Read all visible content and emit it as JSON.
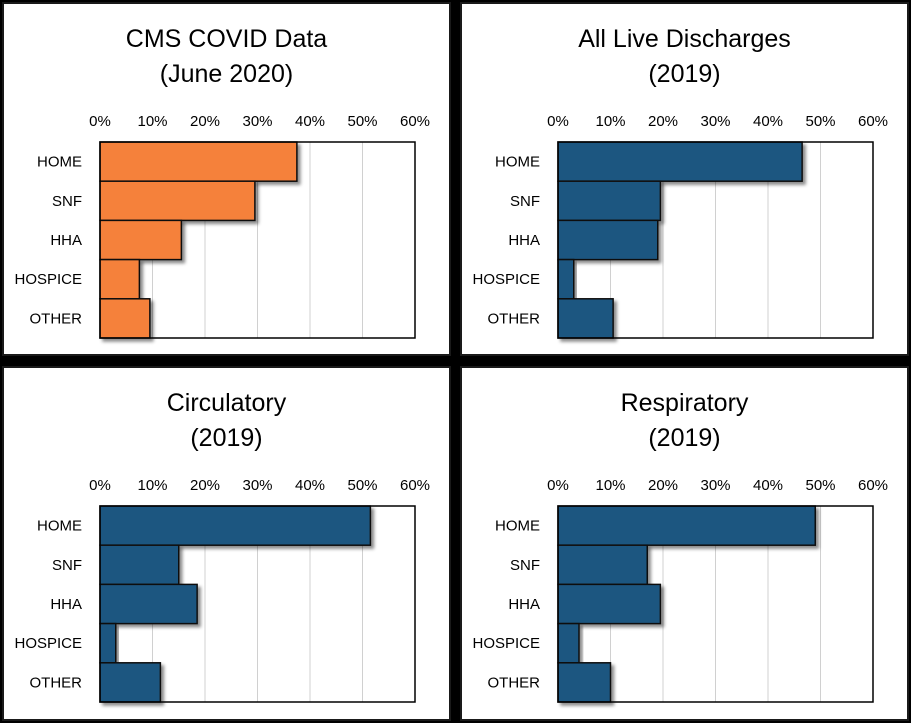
{
  "chart_data": [
    {
      "type": "bar",
      "orientation": "horizontal",
      "title": "CMS COVID Data",
      "subtitle": "(June 2020)",
      "categories": [
        "HOME",
        "SNF",
        "HHA",
        "HOSPICE",
        "OTHER"
      ],
      "values": [
        37.5,
        29.5,
        15.5,
        7.5,
        9.5
      ],
      "xlim": [
        0,
        60
      ],
      "xticks": [
        0,
        10,
        20,
        30,
        40,
        50,
        60
      ],
      "tick_labels": [
        "0%",
        "10%",
        "20%",
        "30%",
        "40%",
        "50%",
        "60%"
      ],
      "bar_color": "#F5813A",
      "grid": true
    },
    {
      "type": "bar",
      "orientation": "horizontal",
      "title": "All Live Discharges",
      "subtitle": "(2019)",
      "categories": [
        "HOME",
        "SNF",
        "HHA",
        "HOSPICE",
        "OTHER"
      ],
      "values": [
        46.5,
        19.5,
        19.0,
        3.0,
        10.5
      ],
      "xlim": [
        0,
        60
      ],
      "xticks": [
        0,
        10,
        20,
        30,
        40,
        50,
        60
      ],
      "tick_labels": [
        "0%",
        "10%",
        "20%",
        "30%",
        "40%",
        "50%",
        "60%"
      ],
      "bar_color": "#1F5780",
      "grid": true
    },
    {
      "type": "bar",
      "orientation": "horizontal",
      "title": "Circulatory",
      "subtitle": "(2019)",
      "categories": [
        "HOME",
        "SNF",
        "HHA",
        "HOSPICE",
        "OTHER"
      ],
      "values": [
        51.5,
        15.0,
        18.5,
        3.0,
        11.5
      ],
      "xlim": [
        0,
        60
      ],
      "xticks": [
        0,
        10,
        20,
        30,
        40,
        50,
        60
      ],
      "tick_labels": [
        "0%",
        "10%",
        "20%",
        "30%",
        "40%",
        "50%",
        "60%"
      ],
      "bar_color": "#1F5780",
      "grid": true
    },
    {
      "type": "bar",
      "orientation": "horizontal",
      "title": "Respiratory",
      "subtitle": "(2019)",
      "categories": [
        "HOME",
        "SNF",
        "HHA",
        "HOSPICE",
        "OTHER"
      ],
      "values": [
        49.0,
        17.0,
        19.5,
        4.0,
        10.0
      ],
      "xlim": [
        0,
        60
      ],
      "xticks": [
        0,
        10,
        20,
        30,
        40,
        50,
        60
      ],
      "tick_labels": [
        "0%",
        "10%",
        "20%",
        "30%",
        "40%",
        "50%",
        "60%"
      ],
      "bar_color": "#1F5780",
      "grid": true
    }
  ]
}
